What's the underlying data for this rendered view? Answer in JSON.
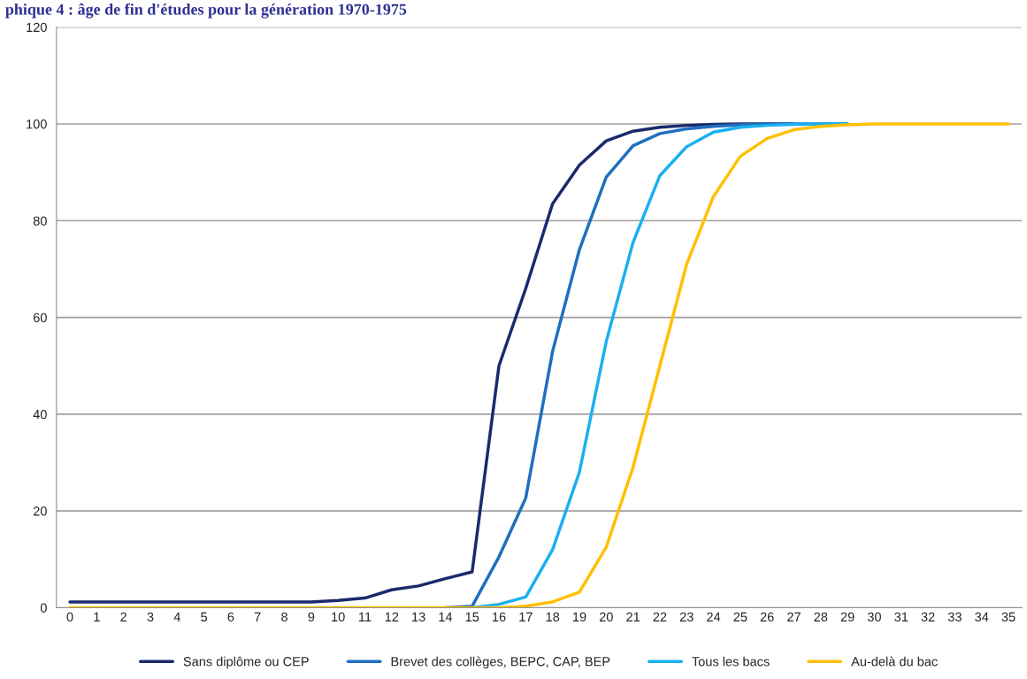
{
  "chart_data": {
    "type": "line",
    "title": "phique 4 : âge de fin d'études pour la génération 1970-1975",
    "categories": [
      "0",
      "1",
      "2",
      "3",
      "4",
      "5",
      "6",
      "7",
      "8",
      "9",
      "10",
      "11",
      "12",
      "13",
      "14",
      "15",
      "16",
      "17",
      "18",
      "19",
      "20",
      "21",
      "22",
      "23",
      "24",
      "25",
      "26",
      "27",
      "28",
      "29",
      "30",
      "31",
      "32",
      "33",
      "34",
      "35"
    ],
    "series": [
      {
        "name": "Sans diplôme ou CEP",
        "color": "#1b2a6b",
        "values": [
          1.2,
          1.2,
          1.2,
          1.2,
          1.2,
          1.2,
          1.2,
          1.2,
          1.2,
          1.2,
          1.5,
          2,
          3.7,
          4.5,
          6,
          7.4,
          50,
          66,
          83.5,
          91.5,
          96.5,
          98.5,
          99.3,
          99.7,
          99.9,
          100,
          100,
          100,
          null,
          null,
          null,
          null,
          null,
          null,
          null,
          null
        ]
      },
      {
        "name": "Brevet des collèges, BEPC, CAP, BEP",
        "color": "#1f6fbf",
        "values": [
          null,
          null,
          null,
          null,
          null,
          null,
          null,
          null,
          null,
          null,
          null,
          null,
          null,
          null,
          0,
          0.3,
          10.5,
          22.7,
          53,
          74,
          89,
          95.5,
          98,
          99,
          99.5,
          99.8,
          100,
          100,
          100,
          100,
          null,
          null,
          null,
          null,
          null,
          null
        ]
      },
      {
        "name": "Tous les bacs",
        "color": "#1ab0f0",
        "values": [
          null,
          null,
          null,
          null,
          null,
          null,
          null,
          null,
          null,
          null,
          null,
          null,
          null,
          null,
          null,
          0,
          0.7,
          2.2,
          12,
          28,
          55,
          75.5,
          89.3,
          95.3,
          98.3,
          99.3,
          99.7,
          99.9,
          100,
          100,
          null,
          null,
          null,
          null,
          null,
          null
        ]
      },
      {
        "name": "Au-delà du bac",
        "color": "#ffc000",
        "values": [
          0,
          0,
          0,
          0,
          0,
          0,
          0,
          0,
          0,
          0,
          0,
          0,
          0,
          0,
          0,
          0,
          0,
          0.3,
          1.2,
          3.2,
          12.5,
          29,
          50,
          71,
          85,
          93.3,
          97,
          98.8,
          99.5,
          99.8,
          100,
          100,
          100,
          100,
          100,
          100
        ]
      }
    ],
    "ylim": [
      0,
      120
    ],
    "yticks": [
      0,
      20,
      40,
      60,
      80,
      100,
      120
    ],
    "grid": "y",
    "legend": "bottom",
    "marker": "none",
    "line_style": "solid"
  }
}
